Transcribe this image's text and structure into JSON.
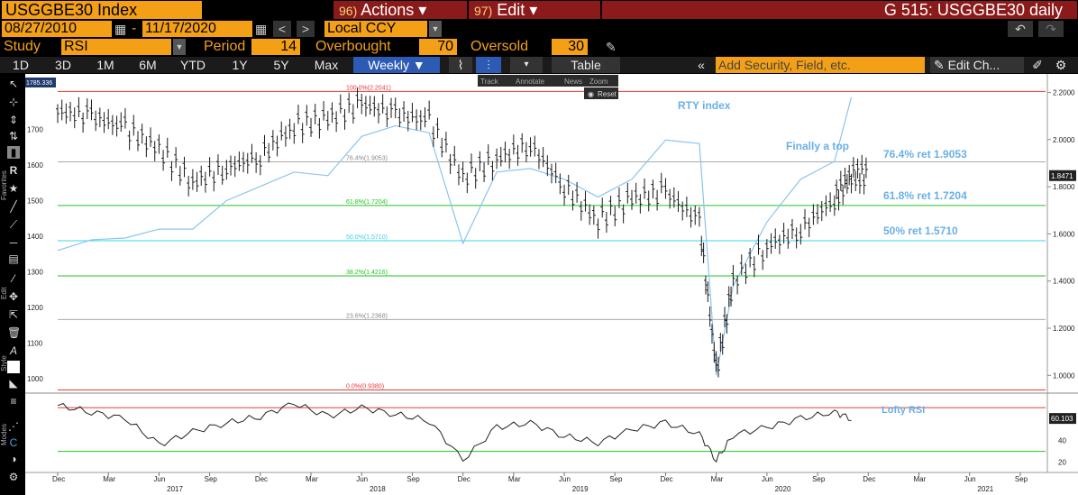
{
  "header": {
    "ticker": "USGGBE30 Index",
    "actions_num": "96)",
    "actions_label": "Actions ▾",
    "edit_num": "97)",
    "edit_label": "Edit ▾",
    "graph_title": "G 515: USGGBE30 daily"
  },
  "range": {
    "start": "08/27/2010",
    "end": "11/17/2020",
    "currency": "Local CCY"
  },
  "study": {
    "label": "Study",
    "value": "RSI",
    "period_label": "Period",
    "period": "14",
    "overbought_label": "Overbought",
    "overbought": "70",
    "oversold_label": "Oversold",
    "oversold": "30"
  },
  "toolbar": {
    "periods": [
      "1D",
      "3D",
      "1M",
      "6M",
      "YTD",
      "1Y",
      "5Y",
      "Max"
    ],
    "frequency": "Weekly ▼",
    "table_label": "Table",
    "add_security_placeholder": "Add Security, Field, etc.",
    "edit_chart_label": "Edit Ch..."
  },
  "sidebar_labels": {
    "favorites": "Favorites",
    "edit": "Edit",
    "style": "Style",
    "modes": "Modes"
  },
  "floating_toolbar": {
    "items": [
      "Track",
      "Annotate",
      "News",
      "Zoom"
    ],
    "reset": "Reset"
  },
  "colors": {
    "orange": "#f4a016",
    "menu_red": "#8b1a1a",
    "price": "#1a1a1a",
    "rty": "#8cc4ef",
    "fib_red": "#e53939",
    "fib_green": "#22c422",
    "fib_cyan": "#37d6e8",
    "fib_gray": "#aaaaaa",
    "annot": "#6ab0e8"
  },
  "chart_data": [
    {
      "type": "line",
      "series": [
        {
          "name": "USGGBE30 Index",
          "y_axis": "right",
          "x": [
            "2016-12",
            "2017-02",
            "2017-04",
            "2017-06",
            "2017-08",
            "2017-10",
            "2017-12",
            "2018-02",
            "2018-04",
            "2018-06",
            "2018-08",
            "2018-10",
            "2018-12",
            "2019-02",
            "2019-04",
            "2019-06",
            "2019-08",
            "2019-10",
            "2019-12",
            "2020-02",
            "2020-03",
            "2020-04",
            "2020-06",
            "2020-08",
            "2020-10",
            "2020-11"
          ],
          "values": [
            2.12,
            2.1,
            2.05,
            1.96,
            1.82,
            1.88,
            1.93,
            2.06,
            2.09,
            2.15,
            2.11,
            2.08,
            1.84,
            1.92,
            1.98,
            1.8,
            1.66,
            1.75,
            1.78,
            1.65,
            1.02,
            1.4,
            1.55,
            1.62,
            1.75,
            1.85
          ]
        },
        {
          "name": "RTY index",
          "y_axis": "left",
          "x": [
            "2016-12",
            "2017-02",
            "2017-04",
            "2017-06",
            "2017-08",
            "2017-10",
            "2017-12",
            "2018-02",
            "2018-04",
            "2018-06",
            "2018-08",
            "2018-10",
            "2018-12",
            "2019-02",
            "2019-04",
            "2019-06",
            "2019-08",
            "2019-10",
            "2019-12",
            "2020-02",
            "2020-03",
            "2020-04",
            "2020-06",
            "2020-08",
            "2020-10",
            "2020-11"
          ],
          "values": [
            1360,
            1390,
            1395,
            1420,
            1420,
            1500,
            1540,
            1580,
            1570,
            1680,
            1710,
            1690,
            1380,
            1580,
            1590,
            1560,
            1510,
            1560,
            1670,
            1660,
            1010,
            1260,
            1440,
            1560,
            1610,
            1790
          ]
        }
      ],
      "y_left_ticks": [
        1000,
        1100,
        1200,
        1300,
        1400,
        1500,
        1600,
        1700
      ],
      "y_right_ticks": [
        "1.0000",
        "1.2000",
        "1.4000",
        "1.6000",
        "1.8000",
        "2.0000",
        "2.2000"
      ],
      "y_left_range": [
        970,
        1830
      ],
      "y_right_range": [
        0.94,
        2.24
      ],
      "last_value_left": "1785.336",
      "last_value_right": "1.8471",
      "x_month_ticks": [
        "Dec",
        "Mar",
        "Jun",
        "Sep",
        "Dec",
        "Mar",
        "Jun",
        "Sep",
        "Dec",
        "Mar",
        "Jun",
        "Sep",
        "Dec",
        "Mar",
        "Jun",
        "Sep",
        "Dec",
        "Mar",
        "Jun",
        "Sep"
      ],
      "x_year_ticks": [
        "2017",
        "2018",
        "2019",
        "2020",
        "2021"
      ],
      "fib_levels": [
        {
          "label": "100.0%(2.2041)",
          "value": 2.2041,
          "color": "red"
        },
        {
          "label": "76.4%(1.9053)",
          "value": 1.9053,
          "color": "gray"
        },
        {
          "label": "61.8%(1.7204)",
          "value": 1.7204,
          "color": "green"
        },
        {
          "label": "50.0%(1.5710)",
          "value": 1.571,
          "color": "cyan"
        },
        {
          "label": "38.2%(1.4216)",
          "value": 1.4216,
          "color": "green"
        },
        {
          "label": "23.6%(1.2368)",
          "value": 1.2368,
          "color": "gray"
        },
        {
          "label": "0.0%(0.9380)",
          "value": 0.938,
          "color": "red"
        }
      ],
      "annotations": [
        "RTY index",
        "Finally a top",
        "76.4% ret 1.9053",
        "61.8% ret 1.7204",
        "50% ret 1.5710"
      ]
    },
    {
      "type": "line",
      "series": [
        {
          "name": "RSI",
          "x": [
            "2016-12",
            "2017-02",
            "2017-04",
            "2017-06",
            "2017-08",
            "2017-10",
            "2017-12",
            "2018-02",
            "2018-04",
            "2018-06",
            "2018-08",
            "2018-10",
            "2018-12",
            "2019-02",
            "2019-04",
            "2019-06",
            "2019-08",
            "2019-10",
            "2019-12",
            "2020-02",
            "2020-03",
            "2020-04",
            "2020-06",
            "2020-08",
            "2020-10",
            "2020-11"
          ],
          "values": [
            72,
            66,
            60,
            36,
            48,
            56,
            62,
            74,
            62,
            70,
            64,
            58,
            22,
            52,
            56,
            44,
            38,
            50,
            56,
            46,
            22,
            45,
            52,
            60,
            66,
            60.103
          ]
        }
      ],
      "y_ticks": [
        20,
        40,
        60
      ],
      "y_range": [
        14,
        80
      ],
      "overbought": 70,
      "oversold": 30,
      "last_value": "60.103",
      "annotations": [
        "Lofty RSI"
      ]
    }
  ]
}
